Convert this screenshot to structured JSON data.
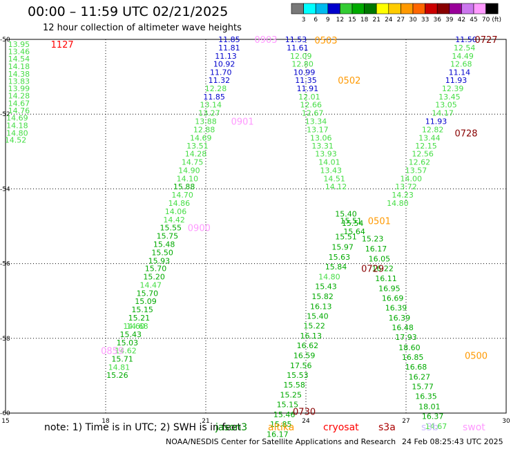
{
  "title": "00:00 – 11:59 UTC 02/21/2025",
  "subtitle": "12 hour collection of altimeter wave heights",
  "colorbar": {
    "unit": "(ft)",
    "colors": [
      "#787878",
      "#00ffff",
      "#00bbee",
      "#0000cc",
      "#33cc33",
      "#00aa00",
      "#007700",
      "#ffff00",
      "#ffcc00",
      "#ff9900",
      "#ff6600",
      "#cc0000",
      "#880000",
      "#990099",
      "#cc77ee",
      "#ff99ff",
      "#000000"
    ],
    "labels": [
      "3",
      "6",
      "9",
      "12",
      "15",
      "18",
      "21",
      "24",
      "27",
      "30",
      "33",
      "36",
      "39",
      "42",
      "45",
      "70"
    ]
  },
  "footer": {
    "note": "note: 1) Time is in UTC; 2) SWH is in feet",
    "credit": "NOAA/NESDIS Center for Satellite Applications and Research",
    "timestamp": "24 Feb 08:25:43 UTC 2025"
  },
  "satellites": [
    {
      "name": "jason3",
      "color": "#008800"
    },
    {
      "name": "altika",
      "color": "#ff9900"
    },
    {
      "name": "cryosat",
      "color": "#ff0000"
    },
    {
      "name": "s3a",
      "color": "#aa0000"
    },
    {
      "name": "s3b",
      "color": "#ccbbff"
    },
    {
      "name": "swot",
      "color": "#ff99ff"
    }
  ],
  "chart_data": {
    "type": "scatter",
    "xlim": [
      15,
      30
    ],
    "ylim": [
      -60,
      -50
    ],
    "xticks": [
      "15",
      "18",
      "21",
      "24",
      "27",
      "30"
    ],
    "yticks": [
      "-50",
      "-52",
      "-54",
      "-56",
      "-58",
      "-60"
    ],
    "grid": true,
    "points": [
      {
        "x": 15.4,
        "y": -50.13,
        "t": "13.95",
        "c": "#44dd44"
      },
      {
        "x": 15.4,
        "y": -50.32,
        "t": "13.46",
        "c": "#44dd44"
      },
      {
        "x": 15.4,
        "y": -50.52,
        "t": "14.54",
        "c": "#44dd44"
      },
      {
        "x": 15.4,
        "y": -50.72,
        "t": "14.18",
        "c": "#44dd44"
      },
      {
        "x": 15.4,
        "y": -50.92,
        "t": "14.38",
        "c": "#44dd44"
      },
      {
        "x": 15.4,
        "y": -51.12,
        "t": "13.83",
        "c": "#44dd44"
      },
      {
        "x": 15.4,
        "y": -51.31,
        "t": "13.99",
        "c": "#44dd44"
      },
      {
        "x": 15.4,
        "y": -51.51,
        "t": "14.28",
        "c": "#44dd44"
      },
      {
        "x": 15.4,
        "y": -51.71,
        "t": "14.67",
        "c": "#44dd44"
      },
      {
        "x": 15.4,
        "y": -51.9,
        "t": "14.76",
        "c": "#44dd44"
      },
      {
        "x": 15.35,
        "y": -52.1,
        "t": "14.69",
        "c": "#44dd44"
      },
      {
        "x": 15.35,
        "y": -52.3,
        "t": "14.18",
        "c": "#44dd44"
      },
      {
        "x": 15.35,
        "y": -52.5,
        "t": "14.80",
        "c": "#44dd44"
      },
      {
        "x": 15.3,
        "y": -52.69,
        "t": "14.52",
        "c": "#44dd44"
      },
      {
        "x": 21.7,
        "y": -50.0,
        "t": "11.85",
        "c": "#0000cc"
      },
      {
        "x": 21.7,
        "y": -50.22,
        "t": "11.81",
        "c": "#0000cc"
      },
      {
        "x": 21.6,
        "y": -50.44,
        "t": "11.13",
        "c": "#0000cc"
      },
      {
        "x": 21.55,
        "y": -50.66,
        "t": "10.92",
        "c": "#0000cc"
      },
      {
        "x": 21.45,
        "y": -50.88,
        "t": "11.70",
        "c": "#0000cc"
      },
      {
        "x": 21.4,
        "y": -51.09,
        "t": "11.32",
        "c": "#0000cc"
      },
      {
        "x": 21.3,
        "y": -51.31,
        "t": "12.28",
        "c": "#44dd44"
      },
      {
        "x": 21.25,
        "y": -51.53,
        "t": "11.85",
        "c": "#0000cc"
      },
      {
        "x": 21.15,
        "y": -51.75,
        "t": "13.14",
        "c": "#44dd44"
      },
      {
        "x": 21.1,
        "y": -51.97,
        "t": "13.27",
        "c": "#44dd44"
      },
      {
        "x": 21.0,
        "y": -52.19,
        "t": "13.88",
        "c": "#44dd44"
      },
      {
        "x": 20.95,
        "y": -52.41,
        "t": "12.88",
        "c": "#44dd44"
      },
      {
        "x": 20.85,
        "y": -52.63,
        "t": "14.69",
        "c": "#44dd44"
      },
      {
        "x": 20.75,
        "y": -52.85,
        "t": "13.51",
        "c": "#44dd44"
      },
      {
        "x": 20.7,
        "y": -53.06,
        "t": "14.28",
        "c": "#44dd44"
      },
      {
        "x": 20.6,
        "y": -53.28,
        "t": "14.75",
        "c": "#44dd44"
      },
      {
        "x": 20.5,
        "y": -53.5,
        "t": "14.90",
        "c": "#44dd44"
      },
      {
        "x": 20.45,
        "y": -53.72,
        "t": "14.10",
        "c": "#44dd44"
      },
      {
        "x": 20.35,
        "y": -53.94,
        "t": "15.88",
        "c": "#00aa00"
      },
      {
        "x": 20.3,
        "y": -54.16,
        "t": "14.70",
        "c": "#44dd44"
      },
      {
        "x": 20.2,
        "y": -54.38,
        "t": "14.86",
        "c": "#44dd44"
      },
      {
        "x": 20.1,
        "y": -54.6,
        "t": "14.06",
        "c": "#44dd44"
      },
      {
        "x": 20.05,
        "y": -54.82,
        "t": "14.42",
        "c": "#44dd44"
      },
      {
        "x": 19.95,
        "y": -55.04,
        "t": "15.55",
        "c": "#00aa00"
      },
      {
        "x": 19.85,
        "y": -55.26,
        "t": "15.75",
        "c": "#00aa00"
      },
      {
        "x": 19.75,
        "y": -55.48,
        "t": "15.48",
        "c": "#00aa00"
      },
      {
        "x": 19.7,
        "y": -55.7,
        "t": "15.50",
        "c": "#00aa00"
      },
      {
        "x": 19.6,
        "y": -55.92,
        "t": "15.93",
        "c": "#00aa00"
      },
      {
        "x": 19.5,
        "y": -56.13,
        "t": "15.70",
        "c": "#00aa00"
      },
      {
        "x": 19.45,
        "y": -56.35,
        "t": "15.20",
        "c": "#00aa00"
      },
      {
        "x": 19.35,
        "y": -56.57,
        "t": "14.47",
        "c": "#44dd44"
      },
      {
        "x": 19.25,
        "y": -56.79,
        "t": "15.70",
        "c": "#00aa00"
      },
      {
        "x": 19.2,
        "y": -57.01,
        "t": "15.09",
        "c": "#00aa00"
      },
      {
        "x": 19.1,
        "y": -57.23,
        "t": "15.15",
        "c": "#00aa00"
      },
      {
        "x": 19.0,
        "y": -57.45,
        "t": "15.21",
        "c": "#00aa00"
      },
      {
        "x": 18.95,
        "y": -57.67,
        "t": "14.68",
        "c": "#44dd44"
      },
      {
        "x": 18.85,
        "y": -57.67,
        "t": "14.60",
        "c": "#44dd44"
      },
      {
        "x": 18.75,
        "y": -57.89,
        "t": "15.43",
        "c": "#00aa00"
      },
      {
        "x": 18.65,
        "y": -58.11,
        "t": "15.03",
        "c": "#00aa00"
      },
      {
        "x": 18.6,
        "y": -58.33,
        "t": "14.62",
        "c": "#44dd44"
      },
      {
        "x": 18.5,
        "y": -58.55,
        "t": "15.71",
        "c": "#00aa00"
      },
      {
        "x": 18.4,
        "y": -58.77,
        "t": "14.81",
        "c": "#44dd44"
      },
      {
        "x": 18.35,
        "y": -58.98,
        "t": "15.26",
        "c": "#00aa00"
      },
      {
        "x": 23.7,
        "y": -50.0,
        "t": "11.53",
        "c": "#0000cc"
      },
      {
        "x": 23.75,
        "y": -50.22,
        "t": "11.61",
        "c": "#0000cc"
      },
      {
        "x": 23.85,
        "y": -50.44,
        "t": "12.09",
        "c": "#44dd44"
      },
      {
        "x": 23.9,
        "y": -50.66,
        "t": "12.80",
        "c": "#44dd44"
      },
      {
        "x": 23.95,
        "y": -50.88,
        "t": "10.99",
        "c": "#0000cc"
      },
      {
        "x": 24.0,
        "y": -51.09,
        "t": "11.35",
        "c": "#0000cc"
      },
      {
        "x": 24.05,
        "y": -51.31,
        "t": "11.91",
        "c": "#0000cc"
      },
      {
        "x": 24.1,
        "y": -51.53,
        "t": "12.01",
        "c": "#44dd44"
      },
      {
        "x": 24.15,
        "y": -51.75,
        "t": "12.66",
        "c": "#44dd44"
      },
      {
        "x": 24.2,
        "y": -51.97,
        "t": "12.67",
        "c": "#44dd44"
      },
      {
        "x": 24.3,
        "y": -52.19,
        "t": "13.34",
        "c": "#44dd44"
      },
      {
        "x": 24.35,
        "y": -52.41,
        "t": "13.17",
        "c": "#44dd44"
      },
      {
        "x": 24.45,
        "y": -52.63,
        "t": "13.06",
        "c": "#44dd44"
      },
      {
        "x": 24.5,
        "y": -52.85,
        "t": "13.31",
        "c": "#44dd44"
      },
      {
        "x": 24.6,
        "y": -53.06,
        "t": "13.93",
        "c": "#44dd44"
      },
      {
        "x": 24.7,
        "y": -53.28,
        "t": "14.01",
        "c": "#44dd44"
      },
      {
        "x": 24.75,
        "y": -53.5,
        "t": "13.43",
        "c": "#44dd44"
      },
      {
        "x": 24.85,
        "y": -53.72,
        "t": "14.51",
        "c": "#44dd44"
      },
      {
        "x": 24.9,
        "y": -53.94,
        "t": "14.12",
        "c": "#44dd44"
      },
      {
        "x": 25.2,
        "y": -54.67,
        "t": "15.40",
        "c": "#00aa00"
      },
      {
        "x": 25.35,
        "y": -54.85,
        "t": "15.51",
        "c": "#00aa00"
      },
      {
        "x": 25.4,
        "y": -54.92,
        "t": "15.54",
        "c": "#00aa00"
      },
      {
        "x": 25.45,
        "y": -55.14,
        "t": "15.64",
        "c": "#00aa00"
      },
      {
        "x": 25.2,
        "y": -55.28,
        "t": "15.51",
        "c": "#00aa00"
      },
      {
        "x": 25.1,
        "y": -55.55,
        "t": "15.97",
        "c": "#00aa00"
      },
      {
        "x": 25.0,
        "y": -55.82,
        "t": "15.63",
        "c": "#00aa00"
      },
      {
        "x": 24.9,
        "y": -56.08,
        "t": "15.84",
        "c": "#00aa00"
      },
      {
        "x": 24.7,
        "y": -56.35,
        "t": "14.80",
        "c": "#44dd44"
      },
      {
        "x": 24.6,
        "y": -56.61,
        "t": "15.43",
        "c": "#00aa00"
      },
      {
        "x": 24.5,
        "y": -56.88,
        "t": "15.82",
        "c": "#00aa00"
      },
      {
        "x": 24.45,
        "y": -57.14,
        "t": "16.13",
        "c": "#00aa00"
      },
      {
        "x": 24.35,
        "y": -57.4,
        "t": "15.40",
        "c": "#00aa00"
      },
      {
        "x": 24.25,
        "y": -57.66,
        "t": "15.22",
        "c": "#00aa00"
      },
      {
        "x": 24.15,
        "y": -57.93,
        "t": "16.13",
        "c": "#00aa00"
      },
      {
        "x": 24.05,
        "y": -58.19,
        "t": "16.62",
        "c": "#00aa00"
      },
      {
        "x": 23.95,
        "y": -58.46,
        "t": "16.59",
        "c": "#00aa00"
      },
      {
        "x": 23.85,
        "y": -58.72,
        "t": "17.56",
        "c": "#00aa00"
      },
      {
        "x": 23.75,
        "y": -58.98,
        "t": "15.53",
        "c": "#00aa00"
      },
      {
        "x": 23.65,
        "y": -59.24,
        "t": "15.58",
        "c": "#00aa00"
      },
      {
        "x": 23.55,
        "y": -59.51,
        "t": "15.25",
        "c": "#00aa00"
      },
      {
        "x": 23.45,
        "y": -59.77,
        "t": "15.15",
        "c": "#00aa00"
      },
      {
        "x": 23.35,
        "y": -60.04,
        "t": "15.46",
        "c": "#00aa00"
      },
      {
        "x": 23.25,
        "y": -60.3,
        "t": "15.85",
        "c": "#00aa00"
      },
      {
        "x": 23.15,
        "y": -60.56,
        "t": "16.17",
        "c": "#00aa00"
      },
      {
        "x": 28.8,
        "y": -50.0,
        "t": "11.50",
        "c": "#0000cc"
      },
      {
        "x": 28.75,
        "y": -50.22,
        "t": "12.54",
        "c": "#44dd44"
      },
      {
        "x": 28.7,
        "y": -50.44,
        "t": "14.49",
        "c": "#44dd44"
      },
      {
        "x": 28.65,
        "y": -50.66,
        "t": "12.68",
        "c": "#44dd44"
      },
      {
        "x": 28.6,
        "y": -50.88,
        "t": "11.14",
        "c": "#0000cc"
      },
      {
        "x": 28.5,
        "y": -51.09,
        "t": "11.93",
        "c": "#0000cc"
      },
      {
        "x": 28.4,
        "y": -51.31,
        "t": "12.39",
        "c": "#44dd44"
      },
      {
        "x": 28.3,
        "y": -51.53,
        "t": "13.45",
        "c": "#44dd44"
      },
      {
        "x": 28.2,
        "y": -51.75,
        "t": "13.05",
        "c": "#44dd44"
      },
      {
        "x": 28.1,
        "y": -51.97,
        "t": "14.17",
        "c": "#44dd44"
      },
      {
        "x": 27.9,
        "y": -52.19,
        "t": "11.93",
        "c": "#0000cc"
      },
      {
        "x": 27.8,
        "y": -52.41,
        "t": "12.82",
        "c": "#44dd44"
      },
      {
        "x": 27.7,
        "y": -52.63,
        "t": "13.44",
        "c": "#44dd44"
      },
      {
        "x": 27.6,
        "y": -52.85,
        "t": "12.15",
        "c": "#44dd44"
      },
      {
        "x": 27.5,
        "y": -53.06,
        "t": "12.56",
        "c": "#44dd44"
      },
      {
        "x": 27.4,
        "y": -53.28,
        "t": "12.62",
        "c": "#44dd44"
      },
      {
        "x": 27.3,
        "y": -53.5,
        "t": "13.57",
        "c": "#44dd44"
      },
      {
        "x": 27.15,
        "y": -53.72,
        "t": "14.00",
        "c": "#44dd44"
      },
      {
        "x": 27.0,
        "y": -53.94,
        "t": "13.72",
        "c": "#44dd44"
      },
      {
        "x": 26.9,
        "y": -54.16,
        "t": "14.23",
        "c": "#44dd44"
      },
      {
        "x": 26.75,
        "y": -54.38,
        "t": "14.80",
        "c": "#44dd44"
      },
      {
        "x": 26.0,
        "y": -55.33,
        "t": "15.23",
        "c": "#00aa00"
      },
      {
        "x": 26.1,
        "y": -55.6,
        "t": "16.17",
        "c": "#00aa00"
      },
      {
        "x": 26.2,
        "y": -55.87,
        "t": "16.05",
        "c": "#00aa00"
      },
      {
        "x": 26.3,
        "y": -56.13,
        "t": "16.22",
        "c": "#00aa00"
      },
      {
        "x": 26.4,
        "y": -56.4,
        "t": "16.11",
        "c": "#00aa00"
      },
      {
        "x": 26.5,
        "y": -56.66,
        "t": "16.95",
        "c": "#00aa00"
      },
      {
        "x": 26.6,
        "y": -56.92,
        "t": "16.69",
        "c": "#00aa00"
      },
      {
        "x": 26.7,
        "y": -57.18,
        "t": "16.39",
        "c": "#00aa00"
      },
      {
        "x": 26.8,
        "y": -57.45,
        "t": "16.39",
        "c": "#00aa00"
      },
      {
        "x": 26.9,
        "y": -57.71,
        "t": "16.48",
        "c": "#00aa00"
      },
      {
        "x": 27.0,
        "y": -57.97,
        "t": "17.93",
        "c": "#00aa00"
      },
      {
        "x": 27.1,
        "y": -58.24,
        "t": "18.60",
        "c": "#00aa00"
      },
      {
        "x": 27.2,
        "y": -58.5,
        "t": "16.85",
        "c": "#00aa00"
      },
      {
        "x": 27.3,
        "y": -58.76,
        "t": "16.68",
        "c": "#00aa00"
      },
      {
        "x": 27.4,
        "y": -59.03,
        "t": "16.27",
        "c": "#00aa00"
      },
      {
        "x": 27.5,
        "y": -59.29,
        "t": "15.77",
        "c": "#00aa00"
      },
      {
        "x": 27.6,
        "y": -59.55,
        "t": "16.35",
        "c": "#00aa00"
      },
      {
        "x": 27.7,
        "y": -59.82,
        "t": "18.01",
        "c": "#00aa00"
      },
      {
        "x": 27.8,
        "y": -60.08,
        "t": "16.37",
        "c": "#00aa00"
      },
      {
        "x": 27.9,
        "y": -60.35,
        "t": "14.67",
        "c": "#44dd44"
      }
    ],
    "annotations": [
      {
        "x": 16.7,
        "y": -50.13,
        "t": "1127",
        "c": "#ff0000"
      },
      {
        "x": 22.8,
        "y": -50.0,
        "t": "0903",
        "c": "#ff99ff"
      },
      {
        "x": 24.6,
        "y": -50.02,
        "t": "0503",
        "c": "#ff9900"
      },
      {
        "x": 25.3,
        "y": -51.09,
        "t": "0502",
        "c": "#ff9900"
      },
      {
        "x": 29.4,
        "y": -50.0,
        "t": "0727",
        "c": "#880000"
      },
      {
        "x": 22.1,
        "y": -52.19,
        "t": "0901",
        "c": "#ff99ff"
      },
      {
        "x": 28.8,
        "y": -52.5,
        "t": "0728",
        "c": "#880000"
      },
      {
        "x": 26.2,
        "y": -54.85,
        "t": "0501",
        "c": "#ff9900"
      },
      {
        "x": 20.8,
        "y": -55.04,
        "t": "0900",
        "c": "#ff99ff"
      },
      {
        "x": 26.0,
        "y": -56.13,
        "t": "0729",
        "c": "#880000"
      },
      {
        "x": 29.1,
        "y": -58.46,
        "t": "0500",
        "c": "#ff9900"
      },
      {
        "x": 18.2,
        "y": -58.33,
        "t": "0859",
        "c": "#ff99ff"
      },
      {
        "x": 23.95,
        "y": -59.95,
        "t": "0730",
        "c": "#880000"
      }
    ]
  }
}
